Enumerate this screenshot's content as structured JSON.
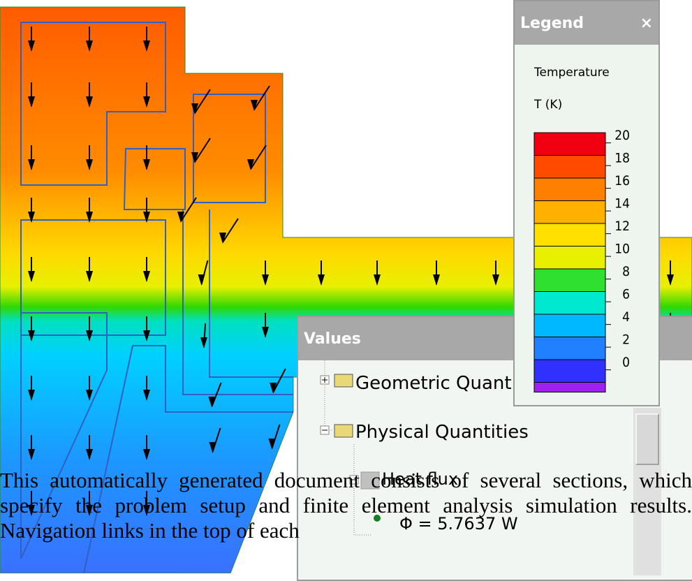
{
  "legend": {
    "title": "Legend",
    "close": "×",
    "quantity": "Temperature",
    "unit": "T (K)",
    "ticks": [
      20,
      18,
      16,
      14,
      12,
      10,
      8,
      6,
      4,
      2,
      0
    ]
  },
  "values": {
    "title": "Values",
    "items": [
      "Geometric Quantities",
      "Physical Quantities",
      "Heat flux",
      "Φ = 5.7637 W"
    ]
  },
  "document": {
    "paragraph": "This automatically generated document consists of several sections, which specify the problem setup and finite element analysis simulation results. Navigation links in the top of each"
  }
}
